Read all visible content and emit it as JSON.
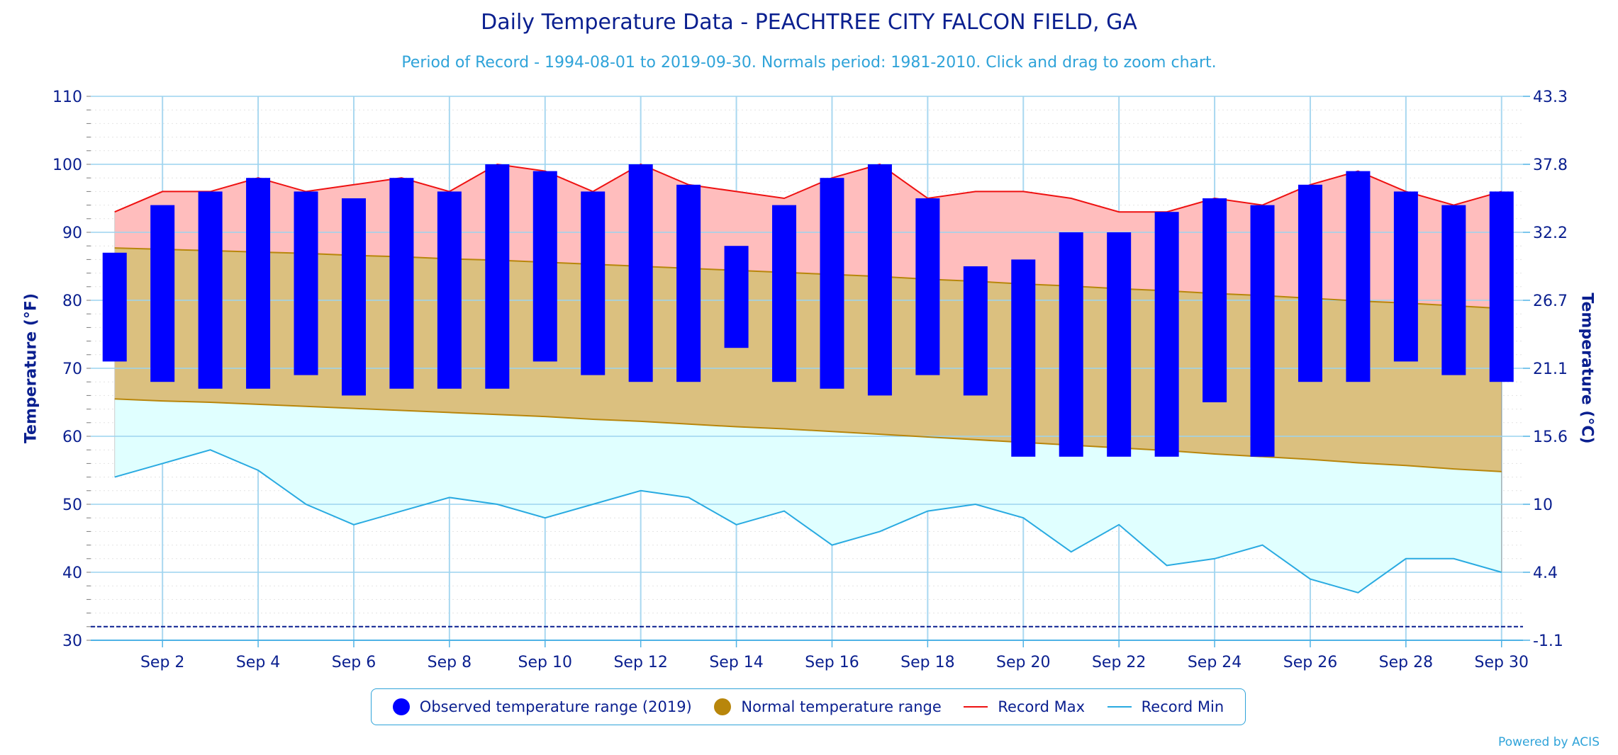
{
  "chart_data": {
    "type": "bar",
    "title": "Daily Temperature Data - PEACHTREE CITY FALCON FIELD, GA",
    "subtitle": "Period of Record - 1994-08-01 to 2019-09-30. Normals period: 1981-2010. Click and drag to zoom chart.",
    "ylabel_left": "Temperature (°F)",
    "ylabel_right": "Temperature (°C)",
    "ylim": [
      30,
      110
    ],
    "yticks_left": [
      30,
      40,
      50,
      60,
      70,
      80,
      90,
      100,
      110
    ],
    "yticks_right": [
      "-1.1",
      "4.4",
      "10",
      "15.6",
      "21.1",
      "26.7",
      "32.2",
      "37.8",
      "43.3"
    ],
    "x": [
      1,
      2,
      3,
      4,
      5,
      6,
      7,
      8,
      9,
      10,
      11,
      12,
      13,
      14,
      15,
      16,
      17,
      18,
      19,
      20,
      21,
      22,
      23,
      24,
      25,
      26,
      27,
      28,
      29,
      30
    ],
    "xtick_labels": [
      "Sep 2",
      "Sep 4",
      "Sep 6",
      "Sep 8",
      "Sep 10",
      "Sep 12",
      "Sep 14",
      "Sep 16",
      "Sep 18",
      "Sep 20",
      "Sep 22",
      "Sep 24",
      "Sep 26",
      "Sep 28",
      "Sep 30"
    ],
    "xtick_days": [
      2,
      4,
      6,
      8,
      10,
      12,
      14,
      16,
      18,
      20,
      22,
      24,
      26,
      28,
      30
    ],
    "freezing_line": 32,
    "grid": true,
    "legend_position": "bottom-center",
    "series": [
      {
        "name": "Observed temperature range (2019)",
        "color": "#0000ff",
        "low": [
          71,
          68,
          67,
          67,
          69,
          66,
          67,
          67,
          67,
          71,
          69,
          68,
          68,
          73,
          68,
          67,
          66,
          69,
          66,
          57,
          57,
          57,
          57,
          65,
          57,
          68,
          68,
          71,
          69,
          68
        ],
        "high": [
          87,
          94,
          96,
          98,
          96,
          95,
          98,
          96,
          100,
          99,
          96,
          100,
          97,
          88,
          94,
          98,
          100,
          95,
          85,
          86,
          90,
          90,
          93,
          95,
          94,
          97,
          99,
          96,
          94,
          96
        ]
      },
      {
        "name": "Normal temperature range",
        "color": "#b8860b",
        "fill": "#dbc07f",
        "low": [
          65.5,
          65.2,
          65.0,
          64.7,
          64.4,
          64.1,
          63.8,
          63.5,
          63.2,
          62.9,
          62.5,
          62.2,
          61.8,
          61.4,
          61.1,
          60.7,
          60.3,
          59.9,
          59.5,
          59.1,
          58.7,
          58.3,
          57.9,
          57.4,
          57.0,
          56.6,
          56.1,
          55.7,
          55.2,
          54.8
        ],
        "high": [
          87.7,
          87.5,
          87.3,
          87.1,
          86.9,
          86.6,
          86.4,
          86.1,
          85.9,
          85.6,
          85.3,
          85.0,
          84.7,
          84.4,
          84.1,
          83.8,
          83.5,
          83.1,
          82.8,
          82.4,
          82.1,
          81.7,
          81.4,
          81.0,
          80.7,
          80.3,
          79.9,
          79.6,
          79.2,
          78.8
        ]
      },
      {
        "name": "Record Max",
        "color": "#ee1111",
        "fill": "#ffbdbd",
        "values": [
          93,
          96,
          96,
          98,
          96,
          97,
          98,
          96,
          100,
          99,
          96,
          100,
          97,
          96,
          95,
          98,
          100,
          95,
          96,
          96,
          95,
          93,
          93,
          95,
          94,
          97,
          99,
          96,
          94,
          96
        ]
      },
      {
        "name": "Record Min",
        "color": "#29aae1",
        "fill": "#e0ffff",
        "values": [
          54,
          56,
          58,
          55,
          50,
          47,
          49,
          51,
          50,
          48,
          50,
          52,
          51,
          47,
          49,
          44,
          46,
          49,
          50,
          48,
          43,
          47,
          41,
          42,
          44,
          39,
          37,
          42,
          42,
          40
        ]
      }
    ]
  },
  "credit": "Powered by ACIS"
}
